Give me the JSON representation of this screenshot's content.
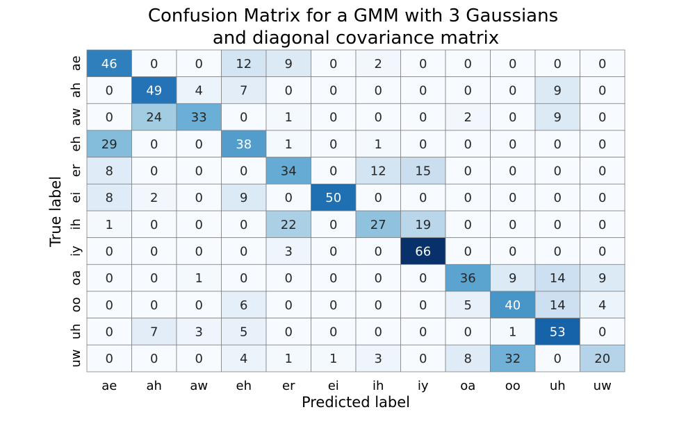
{
  "chart_data": {
    "type": "heatmap",
    "title": [
      "Confusion Matrix for a GMM with 3 Gaussians",
      "and diagonal covariance matrix"
    ],
    "xlabel": "Predicted label",
    "ylabel": "True label",
    "x_categories": [
      "ae",
      "ah",
      "aw",
      "eh",
      "er",
      "ei",
      "ih",
      "iy",
      "oa",
      "oo",
      "uh",
      "uw"
    ],
    "y_categories": [
      "ae",
      "ah",
      "aw",
      "eh",
      "er",
      "ei",
      "ih",
      "iy",
      "oa",
      "oo",
      "uh",
      "uw"
    ],
    "values": [
      [
        46,
        0,
        0,
        12,
        9,
        0,
        2,
        0,
        0,
        0,
        0,
        0
      ],
      [
        0,
        49,
        4,
        7,
        0,
        0,
        0,
        0,
        0,
        0,
        9,
        0
      ],
      [
        0,
        24,
        33,
        0,
        1,
        0,
        0,
        0,
        2,
        0,
        9,
        0
      ],
      [
        29,
        0,
        0,
        38,
        1,
        0,
        1,
        0,
        0,
        0,
        0,
        0
      ],
      [
        8,
        0,
        0,
        0,
        34,
        0,
        12,
        15,
        0,
        0,
        0,
        0
      ],
      [
        8,
        2,
        0,
        9,
        0,
        50,
        0,
        0,
        0,
        0,
        0,
        0
      ],
      [
        1,
        0,
        0,
        0,
        22,
        0,
        27,
        19,
        0,
        0,
        0,
        0
      ],
      [
        0,
        0,
        0,
        0,
        3,
        0,
        0,
        66,
        0,
        0,
        0,
        0
      ],
      [
        0,
        0,
        1,
        0,
        0,
        0,
        0,
        0,
        36,
        9,
        14,
        9
      ],
      [
        0,
        0,
        0,
        6,
        0,
        0,
        0,
        0,
        5,
        40,
        14,
        4
      ],
      [
        0,
        7,
        3,
        5,
        0,
        0,
        0,
        0,
        0,
        1,
        53,
        0
      ],
      [
        0,
        0,
        0,
        4,
        1,
        1,
        3,
        0,
        8,
        32,
        0,
        20
      ]
    ],
    "vmin": 0,
    "vmax": 66,
    "colormap": [
      "#f7fbff",
      "#deebf7",
      "#c6dbef",
      "#9ecae1",
      "#6baed6",
      "#4292c6",
      "#2171b5",
      "#08519c",
      "#08306b"
    ],
    "cell_border_color": "#808080",
    "annotation_dark_color": "#262626",
    "annotation_light_color": "#ffffff",
    "colorbar": false,
    "grid": false
  }
}
